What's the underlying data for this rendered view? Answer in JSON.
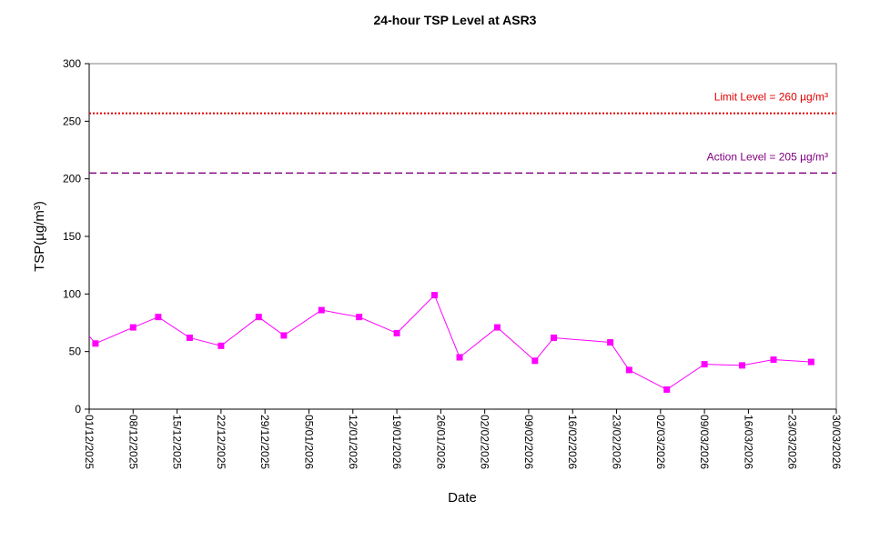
{
  "chart_data": {
    "type": "line",
    "title": "24-hour TSP Level at ASR3",
    "xlabel": "Date",
    "ylabel": "TSP(µg/m³)",
    "ylim": [
      0,
      300
    ],
    "yticks": [
      0,
      50,
      100,
      150,
      200,
      250,
      300
    ],
    "xlim": [
      "01/12/2025",
      "30/03/2026"
    ],
    "xticks": [
      "01/12/2025",
      "08/12/2025",
      "15/12/2025",
      "22/12/2025",
      "29/12/2025",
      "05/01/2026",
      "12/01/2026",
      "19/01/2026",
      "26/01/2026",
      "02/02/2026",
      "09/02/2026",
      "16/02/2026",
      "23/02/2026",
      "02/03/2026",
      "09/03/2026",
      "16/03/2026",
      "23/03/2026",
      "30/03/2026"
    ],
    "grid": false,
    "series": [
      {
        "name": "TSP",
        "color": "#ff00ff",
        "x": [
          "30/11/2025",
          "02/12/2025",
          "08/12/2025",
          "12/12/2025",
          "17/12/2025",
          "22/12/2025",
          "28/12/2025",
          "01/01/2026",
          "07/01/2026",
          "13/01/2026",
          "19/01/2026",
          "25/01/2026",
          "29/01/2026",
          "04/02/2026",
          "10/02/2026",
          "13/02/2026",
          "22/02/2026",
          "25/02/2026",
          "03/03/2026",
          "09/03/2026",
          "15/03/2026",
          "20/03/2026",
          "26/03/2026"
        ],
        "values": [
          70,
          57,
          71,
          80,
          62,
          55,
          80,
          64,
          86,
          80,
          66,
          99,
          45,
          71,
          42,
          62,
          58,
          34,
          17,
          39,
          38,
          43,
          41
        ]
      }
    ],
    "reference_lines": [
      {
        "name": "limit",
        "label": "Limit Level  = 260 µg/m³",
        "value": 260,
        "color": "#e00000",
        "style": "dotted"
      },
      {
        "name": "action",
        "label": "Action Level  = 205 µg/m³",
        "value": 205,
        "color": "#800080",
        "style": "dashed"
      }
    ]
  }
}
